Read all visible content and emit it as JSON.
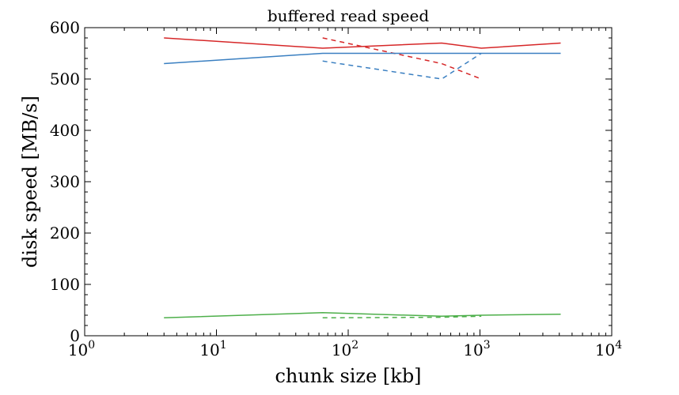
{
  "chart_data": {
    "type": "line",
    "title": "buffered read speed",
    "xlabel": "chunk size [kb]",
    "ylabel": "disk speed [MB/s]",
    "xscale": "log",
    "xlim": [
      1,
      10000
    ],
    "ylim": [
      0,
      600
    ],
    "grid": false,
    "x_ticks": [
      {
        "value": 1,
        "base": "10",
        "exp": "0"
      },
      {
        "value": 10,
        "base": "10",
        "exp": "1"
      },
      {
        "value": 100,
        "base": "10",
        "exp": "2"
      },
      {
        "value": 1000,
        "base": "10",
        "exp": "3"
      },
      {
        "value": 10000,
        "base": "10",
        "exp": "4"
      }
    ],
    "y_ticks": [
      "0",
      "100",
      "200",
      "300",
      "400",
      "500",
      "600"
    ],
    "series": [
      {
        "color": "#d62728",
        "style": "solid",
        "x": [
          4,
          64,
          512,
          1024,
          4096
        ],
        "y": [
          580,
          560,
          570,
          560,
          570
        ]
      },
      {
        "color": "#d62728",
        "style": "dashed",
        "x": [
          64,
          512,
          1024
        ],
        "y": [
          580,
          530,
          500
        ]
      },
      {
        "color": "#3a7fc1",
        "style": "solid",
        "x": [
          4,
          64,
          512,
          1024,
          4096
        ],
        "y": [
          530,
          550,
          550,
          550,
          550
        ]
      },
      {
        "color": "#3a7fc1",
        "style": "dashed",
        "x": [
          64,
          512,
          1024
        ],
        "y": [
          535,
          500,
          550
        ]
      },
      {
        "color": "#4daf4a",
        "style": "solid",
        "x": [
          4,
          64,
          512,
          1024,
          4096
        ],
        "y": [
          35,
          45,
          38,
          40,
          42
        ]
      },
      {
        "color": "#4daf4a",
        "style": "dashed",
        "x": [
          64,
          512,
          1024
        ],
        "y": [
          35,
          36,
          38
        ]
      }
    ]
  }
}
